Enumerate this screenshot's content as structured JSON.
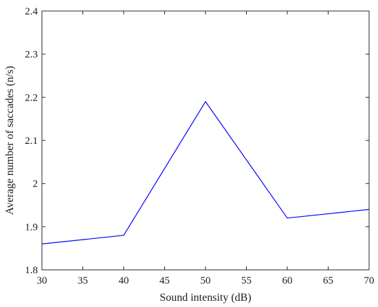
{
  "chart_data": {
    "type": "line",
    "title": "",
    "xlabel": "Sound intensity (dB)",
    "ylabel": "Average number of saccades (n/s)",
    "xlim": [
      30,
      70
    ],
    "ylim": [
      1.8,
      2.4
    ],
    "x_ticks": [
      30,
      35,
      40,
      45,
      50,
      55,
      60,
      65,
      70
    ],
    "y_ticks": [
      1.8,
      1.9,
      2,
      2.1,
      2.2,
      2.3,
      2.4
    ],
    "x_tick_labels": [
      "30",
      "35",
      "40",
      "45",
      "50",
      "55",
      "60",
      "65",
      "70"
    ],
    "y_tick_labels": [
      "1.8",
      "1.9",
      "2",
      "2.1",
      "2.2",
      "2.3",
      "2.4"
    ],
    "grid": false,
    "legend": "none",
    "series": [
      {
        "color": "#0000ff",
        "x": [
          30,
          40,
          50,
          60,
          70
        ],
        "y": [
          1.86,
          1.88,
          2.19,
          1.92,
          1.94
        ]
      }
    ]
  }
}
